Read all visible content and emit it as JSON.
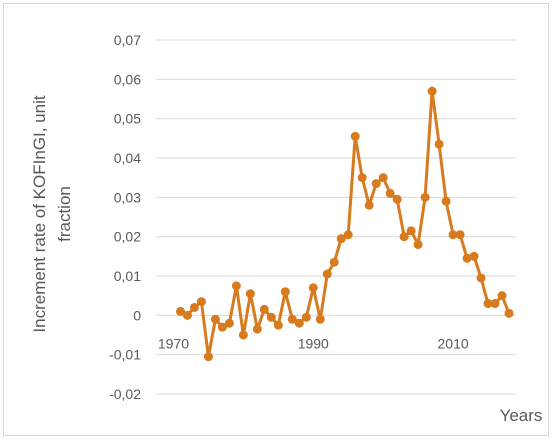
{
  "chart_data": {
    "type": "line",
    "title": "",
    "ylabel_line1": "Increment rate of KOFInGI, unit",
    "ylabel_line2": "fraction",
    "xlabel": "Years",
    "ylim": [
      -0.02,
      0.07
    ],
    "xlim": [
      1967.5,
      2019
    ],
    "grid": "horizontal",
    "legend": "none",
    "y_ticks": [
      {
        "value": 0.07,
        "label": "0,07"
      },
      {
        "value": 0.06,
        "label": "0,06"
      },
      {
        "value": 0.05,
        "label": "0,05"
      },
      {
        "value": 0.04,
        "label": "0,04"
      },
      {
        "value": 0.03,
        "label": "0,03"
      },
      {
        "value": 0.02,
        "label": "0,02"
      },
      {
        "value": 0.01,
        "label": "0,01"
      },
      {
        "value": 0,
        "label": "0"
      },
      {
        "value": -0.01,
        "label": "-0,01"
      },
      {
        "value": -0.02,
        "label": "-0,02"
      }
    ],
    "x_ticks": [
      {
        "value": 1970,
        "label": "1970"
      },
      {
        "value": 1990,
        "label": "1990"
      },
      {
        "value": 2010,
        "label": "2010"
      }
    ],
    "line_color": "#d87a1e",
    "series": [
      {
        "x": [
          1971,
          1972,
          1973,
          1974,
          1975,
          1976,
          1977,
          1978,
          1979,
          1980,
          1981,
          1982,
          1983,
          1984,
          1985,
          1986,
          1987,
          1988,
          1989,
          1990,
          1991,
          1992,
          1993,
          1994,
          1995,
          1996,
          1997,
          1998,
          1999,
          2000,
          2001,
          2002,
          2003,
          2004,
          2005,
          2006,
          2007,
          2008,
          2009,
          2010,
          2011,
          2012,
          2013,
          2014,
          2015,
          2016,
          2017,
          2018
        ],
        "values": [
          0.001,
          0,
          0.002,
          0.0035,
          -0.0105,
          -0.001,
          -0.003,
          -0.002,
          0.0075,
          -0.005,
          0.0055,
          -0.0035,
          0.0015,
          -0.0005,
          -0.0025,
          0.006,
          -0.001,
          -0.002,
          -0.0005,
          0.007,
          -0.001,
          0.0105,
          0.0135,
          0.0195,
          0.0205,
          0.0455,
          0.035,
          0.028,
          0.0335,
          0.035,
          0.031,
          0.0295,
          0.02,
          0.0215,
          0.018,
          0.03,
          0.057,
          0.0435,
          0.029,
          0.0205,
          0.0205,
          0.0145,
          0.015,
          0.0095,
          0.003,
          0.003,
          0.005,
          0.0005
        ]
      }
    ]
  }
}
